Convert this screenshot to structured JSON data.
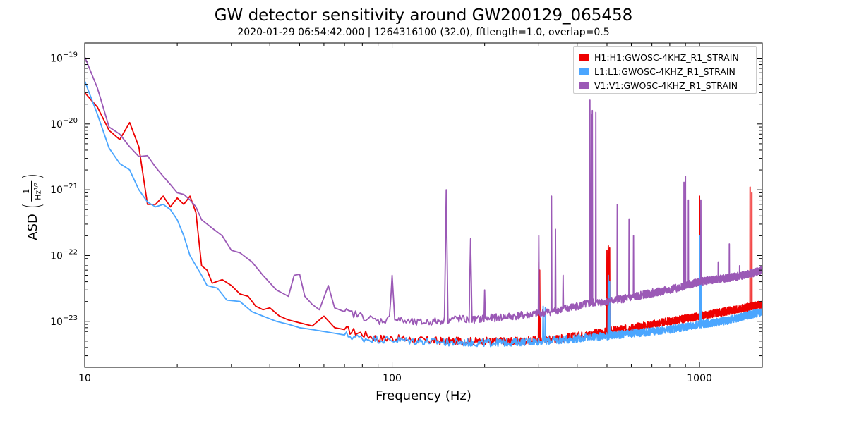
{
  "chart_data": {
    "type": "line",
    "title": "GW detector sensitivity around GW200129_065458",
    "subtitle": "2020-01-29 06:54:42.000 | 1264316100 (32.0), fftlength=1.0, overlap=0.5",
    "xlabel": "Frequency (Hz)",
    "ylabel": "ASD",
    "ylabel_unit_num": "1",
    "ylabel_unit_den": "Hz",
    "ylabel_unit_den_exp": "1/2",
    "xscale": "log",
    "yscale": "log",
    "xlim": [
      10,
      1600
    ],
    "ylim": [
      2e-24,
      1.7e-19
    ],
    "x_ticks": [
      {
        "value": 10,
        "label": "10"
      },
      {
        "value": 100,
        "label": "100"
      },
      {
        "value": 1000,
        "label": "1000"
      }
    ],
    "y_ticks": [
      {
        "value": 1e-23,
        "base": "10",
        "exp": "−23"
      },
      {
        "value": 1e-22,
        "base": "10",
        "exp": "−22"
      },
      {
        "value": 1e-21,
        "base": "10",
        "exp": "−21"
      },
      {
        "value": 1e-20,
        "base": "10",
        "exp": "−20"
      },
      {
        "value": 1e-19,
        "base": "10",
        "exp": "−19"
      }
    ],
    "grid": false,
    "legend_position": "top-right",
    "series": [
      {
        "name": "H1:H1:GWOSC-4KHZ_R1_STRAIN",
        "color": "#ee0000",
        "base_points": [
          [
            10,
            3e-20
          ],
          [
            11,
            1.8e-20
          ],
          [
            12,
            8e-21
          ],
          [
            13,
            5.8e-21
          ],
          [
            14,
            1.05e-20
          ],
          [
            15,
            4.5e-21
          ],
          [
            16,
            6e-22
          ],
          [
            17,
            6e-22
          ],
          [
            18,
            8e-22
          ],
          [
            19,
            5.5e-22
          ],
          [
            20,
            7.5e-22
          ],
          [
            21,
            6e-22
          ],
          [
            22,
            8e-22
          ],
          [
            23,
            4.5e-22
          ],
          [
            24,
            7e-23
          ],
          [
            25,
            6e-23
          ],
          [
            26,
            3.8e-23
          ],
          [
            28,
            4.3e-23
          ],
          [
            30,
            3.5e-23
          ],
          [
            32,
            2.6e-23
          ],
          [
            34,
            2.4e-23
          ],
          [
            36,
            1.7e-23
          ],
          [
            38,
            1.5e-23
          ],
          [
            40,
            1.6e-23
          ],
          [
            43,
            1.2e-23
          ],
          [
            46,
            1.05e-23
          ],
          [
            50,
            9.5e-24
          ],
          [
            55,
            8.5e-24
          ],
          [
            60,
            1.2e-23
          ],
          [
            65,
            8e-24
          ],
          [
            70,
            7.5e-24
          ],
          [
            80,
            6.5e-24
          ],
          [
            90,
            5.5e-24
          ],
          [
            100,
            5.5e-24
          ],
          [
            120,
            5.2e-24
          ],
          [
            150,
            5e-24
          ],
          [
            200,
            5e-24
          ],
          [
            250,
            5e-24
          ],
          [
            300,
            5.2e-24
          ],
          [
            350,
            5.5e-24
          ],
          [
            400,
            6e-24
          ],
          [
            450,
            6.5e-24
          ],
          [
            500,
            7e-24
          ],
          [
            600,
            8e-24
          ],
          [
            700,
            9e-24
          ],
          [
            800,
            1e-23
          ],
          [
            900,
            1.1e-23
          ],
          [
            1000,
            1.2e-23
          ],
          [
            1200,
            1.4e-23
          ],
          [
            1400,
            1.6e-23
          ],
          [
            1600,
            1.8e-23
          ]
        ],
        "peaks": [
          [
            300,
            8e-23
          ],
          [
            302,
            6e-23
          ],
          [
            500,
            1.2e-22
          ],
          [
            505,
            1.4e-22
          ],
          [
            510,
            1.3e-22
          ],
          [
            1000,
            8e-22
          ],
          [
            1005,
            1.5e-22
          ],
          [
            1460,
            1.1e-21
          ],
          [
            1480,
            9e-22
          ]
        ]
      },
      {
        "name": "L1:L1:GWOSC-4KHZ_R1_STRAIN",
        "color": "#4ba6ff",
        "base_points": [
          [
            10,
            4.5e-20
          ],
          [
            11,
            1.4e-20
          ],
          [
            12,
            4.3e-21
          ],
          [
            13,
            2.5e-21
          ],
          [
            14,
            2e-21
          ],
          [
            15,
            1e-21
          ],
          [
            16,
            6.5e-22
          ],
          [
            17,
            5.5e-22
          ],
          [
            18,
            6e-22
          ],
          [
            19,
            5e-22
          ],
          [
            20,
            3.5e-22
          ],
          [
            21,
            2e-22
          ],
          [
            22,
            1e-22
          ],
          [
            23,
            7e-23
          ],
          [
            24,
            5e-23
          ],
          [
            25,
            3.5e-23
          ],
          [
            27,
            3.2e-23
          ],
          [
            29,
            2.1e-23
          ],
          [
            32,
            2e-23
          ],
          [
            35,
            1.4e-23
          ],
          [
            38,
            1.2e-23
          ],
          [
            42,
            1e-23
          ],
          [
            46,
            9e-24
          ],
          [
            50,
            8e-24
          ],
          [
            55,
            7.5e-24
          ],
          [
            60,
            7e-24
          ],
          [
            70,
            6.2e-24
          ],
          [
            80,
            5.5e-24
          ],
          [
            100,
            5.2e-24
          ],
          [
            150,
            4.8e-24
          ],
          [
            200,
            4.7e-24
          ],
          [
            250,
            4.8e-24
          ],
          [
            300,
            5e-24
          ],
          [
            350,
            5.2e-24
          ],
          [
            400,
            5.5e-24
          ],
          [
            500,
            6e-24
          ],
          [
            600,
            6.5e-24
          ],
          [
            800,
            7.5e-24
          ],
          [
            1000,
            9e-24
          ],
          [
            1200,
            1e-23
          ],
          [
            1400,
            1.2e-23
          ],
          [
            1600,
            1.4e-23
          ]
        ],
        "peaks": [
          [
            310,
            1.7e-23
          ],
          [
            315,
            1.6e-23
          ],
          [
            505,
            5e-23
          ],
          [
            510,
            4e-23
          ],
          [
            1000,
            2e-22
          ],
          [
            1010,
            1.5e-22
          ]
        ]
      },
      {
        "name": "V1:V1:GWOSC-4KHZ_R1_STRAIN",
        "color": "#9b59b6",
        "base_points": [
          [
            10,
            1.05e-19
          ],
          [
            11,
            3.5e-20
          ],
          [
            12,
            9e-21
          ],
          [
            13,
            7e-21
          ],
          [
            14,
            4.5e-21
          ],
          [
            15,
            3.2e-21
          ],
          [
            16,
            3.3e-21
          ],
          [
            17,
            2.2e-21
          ],
          [
            18,
            1.6e-21
          ],
          [
            19,
            1.2e-21
          ],
          [
            20,
            9e-22
          ],
          [
            21,
            8.5e-22
          ],
          [
            22,
            7e-22
          ],
          [
            23,
            5.5e-22
          ],
          [
            24,
            3.5e-22
          ],
          [
            26,
            2.6e-22
          ],
          [
            28,
            2e-22
          ],
          [
            30,
            1.2e-22
          ],
          [
            32,
            1.1e-22
          ],
          [
            35,
            8e-23
          ],
          [
            38,
            5e-23
          ],
          [
            42,
            3e-23
          ],
          [
            46,
            2.4e-23
          ],
          [
            48,
            5e-23
          ],
          [
            50,
            5.2e-23
          ],
          [
            52,
            2.4e-23
          ],
          [
            55,
            1.8e-23
          ],
          [
            58,
            1.5e-23
          ],
          [
            62,
            3.5e-23
          ],
          [
            65,
            1.6e-23
          ],
          [
            70,
            1.4e-23
          ],
          [
            80,
            1.2e-23
          ],
          [
            90,
            1e-23
          ],
          [
            100,
            1.1e-23
          ],
          [
            110,
            1e-23
          ],
          [
            120,
            9.5e-24
          ],
          [
            140,
            1e-23
          ],
          [
            160,
            1.1e-23
          ],
          [
            180,
            1.05e-23
          ],
          [
            200,
            1.1e-23
          ],
          [
            250,
            1.2e-23
          ],
          [
            300,
            1.3e-23
          ],
          [
            350,
            1.5e-23
          ],
          [
            400,
            1.7e-23
          ],
          [
            450,
            1.9e-23
          ],
          [
            500,
            2e-23
          ],
          [
            600,
            2.3e-23
          ],
          [
            700,
            2.7e-23
          ],
          [
            800,
            3e-23
          ],
          [
            900,
            3.5e-23
          ],
          [
            1000,
            4e-23
          ],
          [
            1200,
            4.5e-23
          ],
          [
            1400,
            5e-23
          ],
          [
            1600,
            6e-23
          ]
        ],
        "peaks": [
          [
            100,
            5e-23
          ],
          [
            150,
            1e-21
          ],
          [
            180,
            1.8e-22
          ],
          [
            200,
            3e-23
          ],
          [
            300,
            2e-22
          ],
          [
            330,
            8e-22
          ],
          [
            340,
            2.5e-22
          ],
          [
            360,
            5e-23
          ],
          [
            440,
            2.3e-20
          ],
          [
            445,
            1.4e-20
          ],
          [
            448,
            1.6e-20
          ],
          [
            460,
            1.5e-20
          ],
          [
            540,
            6e-22
          ],
          [
            590,
            3.6e-22
          ],
          [
            610,
            2e-22
          ],
          [
            890,
            1.3e-21
          ],
          [
            900,
            1.6e-21
          ],
          [
            920,
            7e-22
          ],
          [
            1010,
            7e-22
          ],
          [
            1150,
            8e-23
          ],
          [
            1250,
            1.5e-22
          ],
          [
            1350,
            7e-23
          ]
        ]
      }
    ]
  }
}
